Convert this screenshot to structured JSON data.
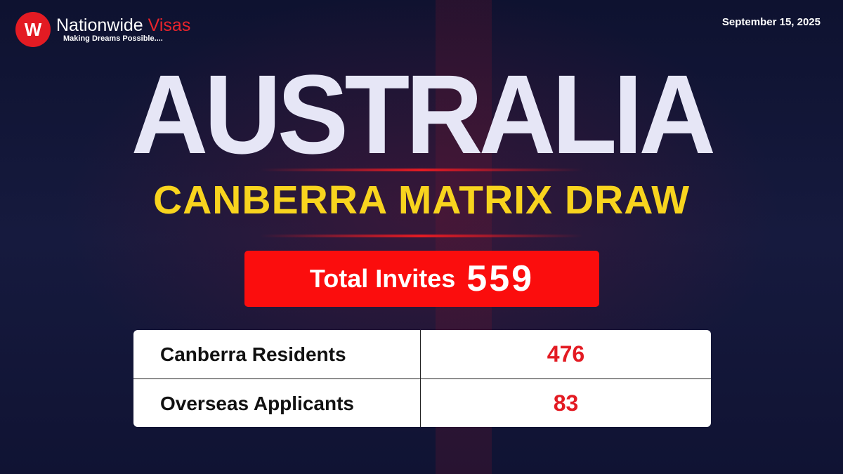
{
  "logo": {
    "brand_main": "Nationwide",
    "brand_accent": "Visas",
    "tagline": "Making Dreams Possible....",
    "icon": "w-monogram-icon"
  },
  "date": "September 15, 2025",
  "title": "AUSTRALIA",
  "subtitle": "CANBERRA MATRIX DRAW",
  "total": {
    "label": "Total Invites",
    "value": "559"
  },
  "table": {
    "rows": [
      {
        "label": "Canberra Residents",
        "value": "476"
      },
      {
        "label": "Overseas Applicants",
        "value": "83"
      }
    ]
  },
  "colors": {
    "accent_red": "#fb0d0d",
    "subtitle_yellow": "#f8d41e",
    "background": "#12163a"
  }
}
